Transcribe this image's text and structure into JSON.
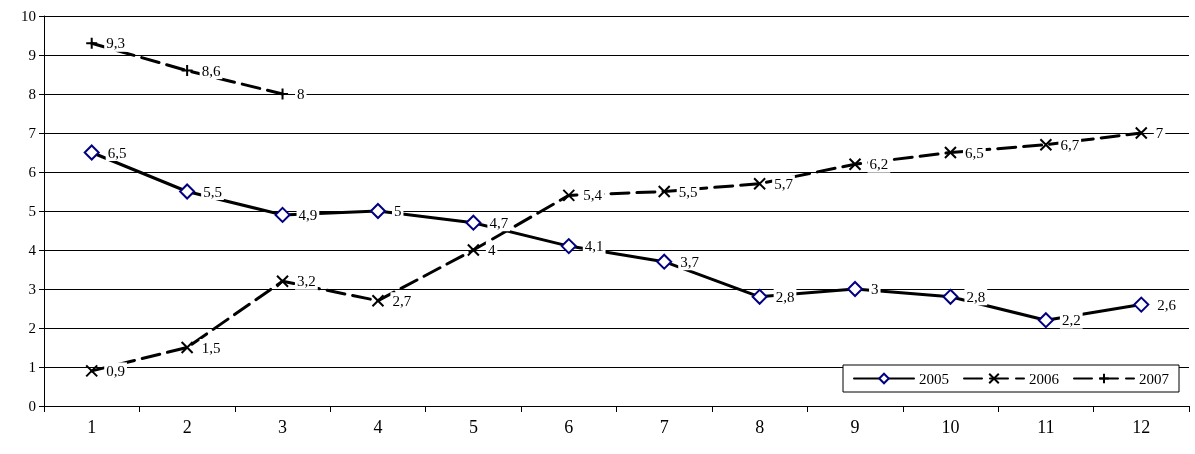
{
  "chart_data": {
    "type": "line",
    "categories": [
      "1",
      "2",
      "3",
      "4",
      "5",
      "6",
      "7",
      "8",
      "9",
      "10",
      "11",
      "12"
    ],
    "ylim": [
      0,
      10
    ],
    "yticks": [
      0,
      1,
      2,
      3,
      4,
      5,
      6,
      7,
      8,
      9,
      10
    ],
    "grid": "y",
    "legend": "bottom right",
    "series": [
      {
        "name": "2005",
        "color": "#000080",
        "marker": "diamond",
        "line_style": "solid",
        "values": [
          6.5,
          5.5,
          4.9,
          5,
          4.7,
          4.1,
          3.7,
          2.8,
          3,
          2.8,
          2.2,
          2.6
        ],
        "value_labels": [
          "6,5",
          "5,5",
          "4,9",
          "5",
          "4,7",
          "4,1",
          "3,7",
          "2,8",
          "3",
          "2,8",
          "2,2",
          "2,6"
        ]
      },
      {
        "name": "2006",
        "color": "#000000",
        "marker": "cross",
        "line_style": "dashed",
        "values": [
          0.9,
          1.5,
          3.2,
          2.7,
          4,
          5.4,
          5.5,
          5.7,
          6.2,
          6.5,
          6.7,
          7
        ],
        "value_labels": [
          "0,9",
          "1,5",
          "3,2",
          "2,7",
          "4",
          "5,4",
          "5,5",
          "5,7",
          "6,2",
          "6,5",
          "6,7",
          "7"
        ]
      },
      {
        "name": "2007",
        "color": "#000000",
        "marker": "plus",
        "line_style": "dashed",
        "values": [
          9.3,
          8.6,
          8,
          null,
          null,
          null,
          null,
          null,
          null,
          null,
          null,
          null
        ],
        "value_labels": [
          "9,3",
          "8,6",
          "8",
          null,
          null,
          null,
          null,
          null,
          null,
          null,
          null,
          null
        ]
      }
    ]
  }
}
